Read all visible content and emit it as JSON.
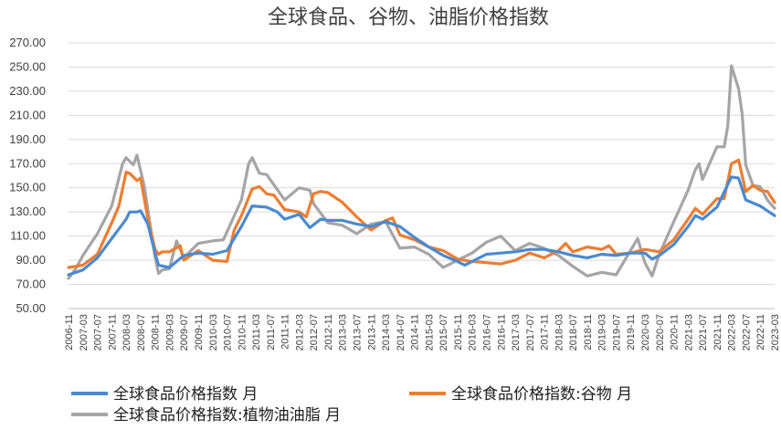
{
  "chart_data": {
    "type": "line",
    "title": "全球食品、谷物、油脂价格指数",
    "xlabel": "",
    "ylabel": "",
    "ylim": [
      50,
      270
    ],
    "yticks": [
      "50.00",
      "70.00",
      "90.00",
      "110.00",
      "130.00",
      "150.00",
      "170.00",
      "190.00",
      "210.00",
      "230.00",
      "250.00",
      "270.00"
    ],
    "x_start": "2006-11",
    "x_end": "2023-03",
    "xticks": [
      "2006-11",
      "2007-03",
      "2007-07",
      "2007-11",
      "2008-03",
      "2008-07",
      "2008-11",
      "2009-03",
      "2009-07",
      "2009-11",
      "2010-03",
      "2010-07",
      "2010-11",
      "2011-03",
      "2011-07",
      "2011-11",
      "2012-03",
      "2012-07",
      "2012-11",
      "2013-03",
      "2013-07",
      "2013-11",
      "2014-03",
      "2014-07",
      "2014-11",
      "2015-03",
      "2015-07",
      "2015-11",
      "2016-03",
      "2016-07",
      "2016-11",
      "2017-03",
      "2017-07",
      "2017-11",
      "2018-03",
      "2018-07",
      "2018-11",
      "2019-03",
      "2019-07",
      "2019-11",
      "2020-03",
      "2020-07",
      "2020-11",
      "2021-03",
      "2021-07",
      "2021-11",
      "2022-03",
      "2022-07",
      "2022-11",
      "2023-03"
    ],
    "grid": true,
    "legend_position": "bottom",
    "series": [
      {
        "name": "全球食品价格指数 月",
        "color": "#4a8ad0",
        "points": [
          [
            "2006-11",
            78
          ],
          [
            "2007-03",
            82
          ],
          [
            "2007-07",
            92
          ],
          [
            "2007-11",
            108
          ],
          [
            "2008-03",
            124
          ],
          [
            "2008-04",
            130
          ],
          [
            "2008-06",
            130
          ],
          [
            "2008-07",
            131
          ],
          [
            "2008-09",
            120
          ],
          [
            "2008-11",
            96
          ],
          [
            "2008-12",
            86
          ],
          [
            "2009-03",
            84
          ],
          [
            "2009-07",
            94
          ],
          [
            "2009-11",
            96
          ],
          [
            "2010-03",
            95
          ],
          [
            "2010-07",
            98
          ],
          [
            "2010-11",
            118
          ],
          [
            "2011-02",
            135
          ],
          [
            "2011-06",
            134
          ],
          [
            "2011-09",
            130
          ],
          [
            "2011-11",
            124
          ],
          [
            "2012-03",
            128
          ],
          [
            "2012-06",
            117
          ],
          [
            "2012-09",
            124
          ],
          [
            "2012-11",
            123
          ],
          [
            "2013-03",
            123
          ],
          [
            "2013-07",
            120
          ],
          [
            "2013-11",
            118
          ],
          [
            "2014-03",
            122
          ],
          [
            "2014-07",
            118
          ],
          [
            "2014-11",
            109
          ],
          [
            "2015-03",
            101
          ],
          [
            "2015-07",
            94
          ],
          [
            "2015-11",
            89
          ],
          [
            "2016-01",
            86
          ],
          [
            "2016-03",
            89
          ],
          [
            "2016-07",
            95
          ],
          [
            "2016-11",
            96
          ],
          [
            "2017-03",
            97
          ],
          [
            "2017-07",
            99
          ],
          [
            "2017-11",
            99
          ],
          [
            "2018-03",
            97
          ],
          [
            "2018-07",
            94
          ],
          [
            "2018-11",
            92
          ],
          [
            "2019-03",
            95
          ],
          [
            "2019-07",
            94
          ],
          [
            "2019-11",
            96
          ],
          [
            "2020-03",
            96
          ],
          [
            "2020-05",
            91
          ],
          [
            "2020-07",
            94
          ],
          [
            "2020-11",
            103
          ],
          [
            "2021-03",
            118
          ],
          [
            "2021-05",
            127
          ],
          [
            "2021-07",
            124
          ],
          [
            "2021-11",
            134
          ],
          [
            "2022-03",
            159
          ],
          [
            "2022-05",
            158
          ],
          [
            "2022-07",
            140
          ],
          [
            "2022-11",
            135
          ],
          [
            "2023-01",
            131
          ],
          [
            "2023-03",
            127
          ]
        ]
      },
      {
        "name": "全球食品价格指数:谷物 月",
        "color": "#ed7d31",
        "points": [
          [
            "2006-11",
            84
          ],
          [
            "2007-03",
            86
          ],
          [
            "2007-07",
            95
          ],
          [
            "2007-11",
            121
          ],
          [
            "2008-01",
            135
          ],
          [
            "2008-03",
            163
          ],
          [
            "2008-04",
            162
          ],
          [
            "2008-06",
            156
          ],
          [
            "2008-07",
            158
          ],
          [
            "2008-09",
            125
          ],
          [
            "2008-11",
            99
          ],
          [
            "2008-12",
            95
          ],
          [
            "2009-01",
            97
          ],
          [
            "2009-03",
            97
          ],
          [
            "2009-06",
            102
          ],
          [
            "2009-07",
            90
          ],
          [
            "2009-11",
            98
          ],
          [
            "2010-03",
            90
          ],
          [
            "2010-07",
            89
          ],
          [
            "2010-09",
            115
          ],
          [
            "2010-11",
            127
          ],
          [
            "2011-02",
            149
          ],
          [
            "2011-04",
            151
          ],
          [
            "2011-06",
            145
          ],
          [
            "2011-08",
            144
          ],
          [
            "2011-11",
            132
          ],
          [
            "2012-03",
            130
          ],
          [
            "2012-05",
            126
          ],
          [
            "2012-07",
            145
          ],
          [
            "2012-09",
            147
          ],
          [
            "2012-11",
            146
          ],
          [
            "2013-03",
            138
          ],
          [
            "2013-07",
            126
          ],
          [
            "2013-11",
            115
          ],
          [
            "2014-03",
            123
          ],
          [
            "2014-05",
            125
          ],
          [
            "2014-07",
            111
          ],
          [
            "2014-11",
            107
          ],
          [
            "2015-03",
            101
          ],
          [
            "2015-07",
            98
          ],
          [
            "2015-11",
            91
          ],
          [
            "2016-03",
            89
          ],
          [
            "2016-07",
            88
          ],
          [
            "2016-11",
            87
          ],
          [
            "2017-03",
            90
          ],
          [
            "2017-07",
            96
          ],
          [
            "2017-11",
            92
          ],
          [
            "2018-03",
            98
          ],
          [
            "2018-05",
            104
          ],
          [
            "2018-07",
            97
          ],
          [
            "2018-11",
            101
          ],
          [
            "2019-03",
            99
          ],
          [
            "2019-05",
            102
          ],
          [
            "2019-07",
            95
          ],
          [
            "2019-11",
            96
          ],
          [
            "2020-03",
            99
          ],
          [
            "2020-07",
            97
          ],
          [
            "2020-11",
            107
          ],
          [
            "2021-03",
            124
          ],
          [
            "2021-05",
            133
          ],
          [
            "2021-07",
            128
          ],
          [
            "2021-11",
            141
          ],
          [
            "2022-01",
            141
          ],
          [
            "2022-03",
            170
          ],
          [
            "2022-05",
            173
          ],
          [
            "2022-07",
            147
          ],
          [
            "2022-09",
            152
          ],
          [
            "2022-11",
            148
          ],
          [
            "2023-01",
            147
          ],
          [
            "2023-03",
            138
          ]
        ]
      },
      {
        "name": "全球食品价格指数:植物油油脂 月",
        "color": "#a5a5a5",
        "points": [
          [
            "2006-11",
            75
          ],
          [
            "2007-01",
            83
          ],
          [
            "2007-03",
            94
          ],
          [
            "2007-07",
            112
          ],
          [
            "2007-11",
            135
          ],
          [
            "2008-02",
            170
          ],
          [
            "2008-03",
            175
          ],
          [
            "2008-05",
            169
          ],
          [
            "2008-06",
            177
          ],
          [
            "2008-08",
            152
          ],
          [
            "2008-11",
            93
          ],
          [
            "2008-12",
            79
          ],
          [
            "2009-01",
            82
          ],
          [
            "2009-03",
            83
          ],
          [
            "2009-05",
            106
          ],
          [
            "2009-07",
            92
          ],
          [
            "2009-11",
            104
          ],
          [
            "2010-03",
            106
          ],
          [
            "2010-06",
            107
          ],
          [
            "2010-11",
            140
          ],
          [
            "2011-01",
            170
          ],
          [
            "2011-02",
            175
          ],
          [
            "2011-04",
            162
          ],
          [
            "2011-06",
            161
          ],
          [
            "2011-11",
            140
          ],
          [
            "2012-03",
            150
          ],
          [
            "2012-06",
            148
          ],
          [
            "2012-07",
            137
          ],
          [
            "2012-11",
            121
          ],
          [
            "2013-03",
            119
          ],
          [
            "2013-07",
            112
          ],
          [
            "2013-11",
            120
          ],
          [
            "2014-03",
            122
          ],
          [
            "2014-07",
            100
          ],
          [
            "2014-11",
            101
          ],
          [
            "2015-03",
            95
          ],
          [
            "2015-07",
            84
          ],
          [
            "2015-11",
            90
          ],
          [
            "2016-03",
            96
          ],
          [
            "2016-07",
            105
          ],
          [
            "2016-11",
            110
          ],
          [
            "2017-03",
            98
          ],
          [
            "2017-07",
            104
          ],
          [
            "2017-11",
            100
          ],
          [
            "2018-03",
            94
          ],
          [
            "2018-07",
            85
          ],
          [
            "2018-11",
            77
          ],
          [
            "2019-03",
            80
          ],
          [
            "2019-07",
            78
          ],
          [
            "2019-11",
            98
          ],
          [
            "2020-01",
            108
          ],
          [
            "2020-03",
            88
          ],
          [
            "2020-05",
            77
          ],
          [
            "2020-07",
            95
          ],
          [
            "2020-11",
            122
          ],
          [
            "2021-03",
            148
          ],
          [
            "2021-05",
            165
          ],
          [
            "2021-06",
            170
          ],
          [
            "2021-07",
            157
          ],
          [
            "2021-11",
            184
          ],
          [
            "2022-01",
            184
          ],
          [
            "2022-02",
            201
          ],
          [
            "2022-03",
            251
          ],
          [
            "2022-05",
            232
          ],
          [
            "2022-06",
            211
          ],
          [
            "2022-07",
            169
          ],
          [
            "2022-09",
            152
          ],
          [
            "2022-11",
            151
          ],
          [
            "2023-01",
            140
          ],
          [
            "2023-03",
            133
          ]
        ]
      }
    ]
  }
}
